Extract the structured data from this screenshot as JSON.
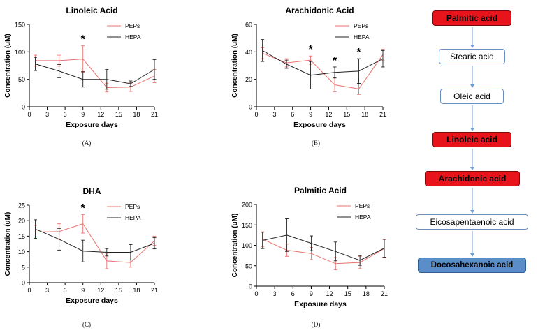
{
  "chart_data": [
    {
      "type": "line",
      "title": "Linoleic Acid",
      "xlabel": "Exposure days",
      "ylabel": "Concentration (uM)",
      "panel_label": "(A)",
      "xlim": [
        0,
        21
      ],
      "ylim": [
        0,
        150
      ],
      "x_ticks": [
        0,
        3,
        6,
        9,
        12,
        15,
        18,
        21
      ],
      "y_ticks": [
        0,
        50,
        100,
        150
      ],
      "legend_position": "top-right",
      "significance": [
        {
          "x": 9,
          "label": "*"
        }
      ],
      "series": [
        {
          "name": "PEPs",
          "color": "#e8736e",
          "x": [
            1,
            5,
            9,
            13,
            17,
            21
          ],
          "values": [
            84,
            84,
            87,
            35,
            36,
            56
          ],
          "err": [
            10,
            10,
            24,
            8,
            8,
            12
          ]
        },
        {
          "name": "HEPA",
          "color": "#222222",
          "x": [
            1,
            5,
            9,
            13,
            17,
            21
          ],
          "values": [
            78,
            65,
            50,
            50,
            42,
            68
          ],
          "err": [
            12,
            12,
            14,
            18,
            5,
            18
          ]
        }
      ]
    },
    {
      "type": "line",
      "title": "Arachidonic Acid",
      "xlabel": "Exposure days",
      "ylabel": "Concentration (uM)",
      "panel_label": "(B)",
      "xlim": [
        0,
        21
      ],
      "ylim": [
        0,
        60
      ],
      "x_ticks": [
        0,
        3,
        6,
        9,
        12,
        15,
        18,
        21
      ],
      "y_ticks": [
        0,
        20,
        40,
        60
      ],
      "legend_position": "top-right",
      "significance": [
        {
          "x": 9,
          "label": "*"
        },
        {
          "x": 13,
          "label": "*"
        },
        {
          "x": 17,
          "label": "*"
        }
      ],
      "series": [
        {
          "name": "PEPs",
          "color": "#e8736e",
          "x": [
            1,
            5,
            9,
            13,
            17,
            21
          ],
          "values": [
            39,
            32,
            34,
            16,
            13,
            38
          ],
          "err": [
            4,
            3,
            3,
            5,
            4,
            4
          ]
        },
        {
          "name": "HEPA",
          "color": "#222222",
          "x": [
            1,
            5,
            9,
            13,
            17,
            21
          ],
          "values": [
            41,
            31,
            23,
            25,
            26,
            35
          ],
          "err": [
            8,
            3,
            10,
            4,
            9,
            6
          ]
        }
      ]
    },
    {
      "type": "line",
      "title": "DHA",
      "xlabel": "Exposure days",
      "ylabel": "Concentration (uM)",
      "panel_label": "(C)",
      "xlim": [
        0,
        21
      ],
      "ylim": [
        0,
        25
      ],
      "x_ticks": [
        0,
        3,
        6,
        9,
        12,
        15,
        18,
        21
      ],
      "y_ticks": [
        0,
        5,
        10,
        15,
        20,
        25
      ],
      "legend_position": "top-right",
      "significance": [
        {
          "x": 9,
          "label": "*"
        }
      ],
      "series": [
        {
          "name": "PEPs",
          "color": "#e8736e",
          "x": [
            1,
            5,
            9,
            13,
            17,
            21
          ],
          "values": [
            16.3,
            16.5,
            19,
            7,
            6.5,
            13.5
          ],
          "err": [
            2.2,
            2.5,
            3,
            2.5,
            1.5,
            1.5
          ]
        },
        {
          "name": "HEPA",
          "color": "#222222",
          "x": [
            1,
            5,
            9,
            13,
            17,
            21
          ],
          "values": [
            17.3,
            14,
            10.2,
            9.8,
            9.8,
            12.7
          ],
          "err": [
            3,
            3.5,
            3.5,
            1.2,
            2.5,
            1.8
          ]
        }
      ]
    },
    {
      "type": "line",
      "title": "Palmitic Acid",
      "xlabel": "Exposure days",
      "ylabel": "Concentration (uM)",
      "panel_label": "(D)",
      "xlim": [
        0,
        21
      ],
      "ylim": [
        0,
        200
      ],
      "x_ticks": [
        0,
        3,
        6,
        9,
        12,
        15,
        18,
        21
      ],
      "y_ticks": [
        0,
        50,
        100,
        150,
        200
      ],
      "legend_position": "top-right",
      "significance": [],
      "series": [
        {
          "name": "PEPs",
          "color": "#e8736e",
          "x": [
            1,
            5,
            9,
            13,
            17,
            21
          ],
          "values": [
            115,
            88,
            80,
            55,
            58,
            92
          ],
          "err": [
            18,
            15,
            15,
            15,
            15,
            22
          ]
        },
        {
          "name": "HEPA",
          "color": "#222222",
          "x": [
            1,
            5,
            9,
            13,
            17,
            21
          ],
          "values": [
            112,
            125,
            105,
            85,
            63,
            93
          ],
          "err": [
            20,
            40,
            18,
            23,
            12,
            22
          ]
        }
      ]
    }
  ],
  "pathway": {
    "steps": [
      {
        "label": "Palmitic acid",
        "style": "red"
      },
      {
        "label": "Stearic acid",
        "style": "outline"
      },
      {
        "label": "Oleic acid",
        "style": "outline"
      },
      {
        "label": "Linoleic acid",
        "style": "red"
      },
      {
        "label": "Arachidonic acid",
        "style": "red"
      },
      {
        "label": "Eicosapentaenoic acid",
        "style": "outline"
      },
      {
        "label": "Docosahexanoic acid",
        "style": "blue"
      }
    ],
    "colors": {
      "red_fill": "#e8141b",
      "red_border": "#7a0a0a",
      "blue_fill": "#5b8ec9",
      "blue_border": "#2f5c91",
      "outline_border": "#6c8ebf",
      "arrow": "#6c9fd6"
    }
  }
}
